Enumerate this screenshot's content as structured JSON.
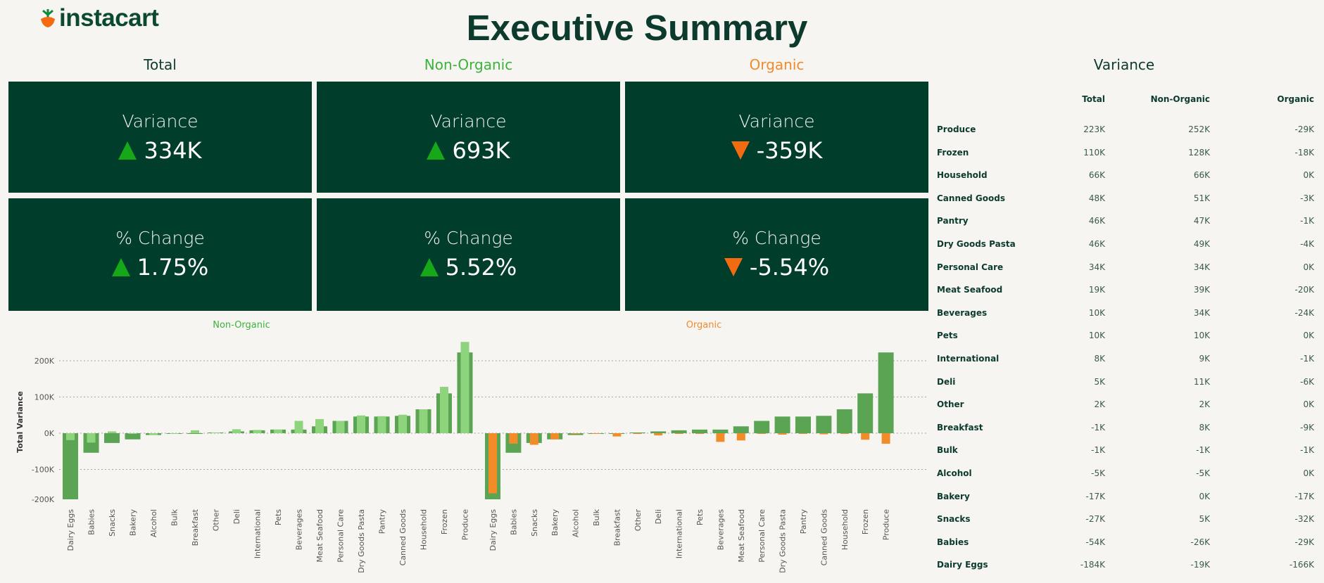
{
  "header": {
    "brand": "instacart",
    "title": "Executive Summary"
  },
  "columns": {
    "total": "Total",
    "non_organic": "Non-Organic",
    "organic": "Organic"
  },
  "kpis": {
    "total": {
      "variance_label": "Variance",
      "variance": "334K",
      "variance_dir": "up",
      "change_label": "% Change",
      "change": "1.75%",
      "change_dir": "up"
    },
    "non_organic": {
      "variance_label": "Variance",
      "variance": "693K",
      "variance_dir": "up",
      "change_label": "% Change",
      "change": "5.52%",
      "change_dir": "up"
    },
    "organic": {
      "variance_label": "Variance",
      "variance": "-359K",
      "variance_dir": "down",
      "change_label": "% Change",
      "change": "-5.54%",
      "change_dir": "down"
    }
  },
  "colors": {
    "dark_green": "#003d2b",
    "bar_total": "#5aa454",
    "bar_non_organic": "#8dd47c",
    "bar_organic": "#f28c28",
    "up": "#17a81a",
    "down": "#f26b10",
    "non_organic_text": "#3bb33b",
    "organic_text": "#f08a2b"
  },
  "chart_data": [
    {
      "type": "bar",
      "title": "Non-Organic",
      "ylabel": "Total Variance",
      "ylim": [
        -200000,
        250000
      ],
      "yticks": [
        "200K",
        "100K",
        "0K",
        "-100K",
        "-200K"
      ],
      "categories": [
        "Dairy Eggs",
        "Babies",
        "Snacks",
        "Bakery",
        "Alcohol",
        "Bulk",
        "Breakfast",
        "Other",
        "Deli",
        "International",
        "Pets",
        "Beverages",
        "Meat Seafood",
        "Personal Care",
        "Dry Goods Pasta",
        "Pantry",
        "Canned Goods",
        "Household",
        "Frozen",
        "Produce"
      ],
      "series": [
        {
          "name": "Total",
          "values": [
            -184000,
            -54000,
            -27000,
            -17000,
            -5000,
            -1000,
            -1000,
            2000,
            5000,
            8000,
            10000,
            10000,
            19000,
            34000,
            46000,
            46000,
            48000,
            66000,
            110000,
            223000
          ]
        },
        {
          "name": "Non-Organic",
          "values": [
            -19000,
            -26000,
            5000,
            0,
            -5000,
            -1000,
            8000,
            2000,
            11000,
            9000,
            10000,
            34000,
            39000,
            34000,
            49000,
            47000,
            51000,
            66000,
            128000,
            252000
          ]
        }
      ]
    },
    {
      "type": "bar",
      "title": "Organic",
      "ylim": [
        -200000,
        250000
      ],
      "categories": [
        "Dairy Eggs",
        "Babies",
        "Snacks",
        "Bakery",
        "Alcohol",
        "Bulk",
        "Breakfast",
        "Other",
        "Deli",
        "International",
        "Pets",
        "Beverages",
        "Meat Seafood",
        "Personal Care",
        "Dry Goods Pasta",
        "Pantry",
        "Canned Goods",
        "Household",
        "Frozen",
        "Produce"
      ],
      "series": [
        {
          "name": "Total",
          "values": [
            -184000,
            -54000,
            -27000,
            -17000,
            -5000,
            -1000,
            -1000,
            2000,
            5000,
            8000,
            10000,
            10000,
            19000,
            34000,
            46000,
            46000,
            48000,
            66000,
            110000,
            223000
          ]
        },
        {
          "name": "Organic",
          "values": [
            -166000,
            -29000,
            -32000,
            -17000,
            0,
            -1000,
            -9000,
            0,
            -6000,
            -1000,
            0,
            -24000,
            -20000,
            0,
            -4000,
            -1000,
            -3000,
            0,
            -18000,
            -29000
          ]
        }
      ]
    }
  ],
  "variance_table": {
    "title": "Variance",
    "headers": [
      "Total",
      "Non-Organic",
      "Organic"
    ],
    "rows": [
      {
        "category": "Produce",
        "total": "223K",
        "non_organic": "252K",
        "organic": "-29K"
      },
      {
        "category": "Frozen",
        "total": "110K",
        "non_organic": "128K",
        "organic": "-18K"
      },
      {
        "category": "Household",
        "total": "66K",
        "non_organic": "66K",
        "organic": "0K"
      },
      {
        "category": "Canned Goods",
        "total": "48K",
        "non_organic": "51K",
        "organic": "-3K"
      },
      {
        "category": "Pantry",
        "total": "46K",
        "non_organic": "47K",
        "organic": "-1K"
      },
      {
        "category": "Dry Goods Pasta",
        "total": "46K",
        "non_organic": "49K",
        "organic": "-4K"
      },
      {
        "category": "Personal Care",
        "total": "34K",
        "non_organic": "34K",
        "organic": "0K"
      },
      {
        "category": "Meat Seafood",
        "total": "19K",
        "non_organic": "39K",
        "organic": "-20K"
      },
      {
        "category": "Beverages",
        "total": "10K",
        "non_organic": "34K",
        "organic": "-24K"
      },
      {
        "category": "Pets",
        "total": "10K",
        "non_organic": "10K",
        "organic": "0K"
      },
      {
        "category": "International",
        "total": "8K",
        "non_organic": "9K",
        "organic": "-1K"
      },
      {
        "category": "Deli",
        "total": "5K",
        "non_organic": "11K",
        "organic": "-6K"
      },
      {
        "category": "Other",
        "total": "2K",
        "non_organic": "2K",
        "organic": "0K"
      },
      {
        "category": "Breakfast",
        "total": "-1K",
        "non_organic": "8K",
        "organic": "-9K"
      },
      {
        "category": "Bulk",
        "total": "-1K",
        "non_organic": "-1K",
        "organic": "-1K"
      },
      {
        "category": "Alcohol",
        "total": "-5K",
        "non_organic": "-5K",
        "organic": "0K"
      },
      {
        "category": "Bakery",
        "total": "-17K",
        "non_organic": "0K",
        "organic": "-17K"
      },
      {
        "category": "Snacks",
        "total": "-27K",
        "non_organic": "5K",
        "organic": "-32K"
      },
      {
        "category": "Babies",
        "total": "-54K",
        "non_organic": "-26K",
        "organic": "-29K"
      },
      {
        "category": "Dairy Eggs",
        "total": "-184K",
        "non_organic": "-19K",
        "organic": "-166K"
      }
    ]
  }
}
